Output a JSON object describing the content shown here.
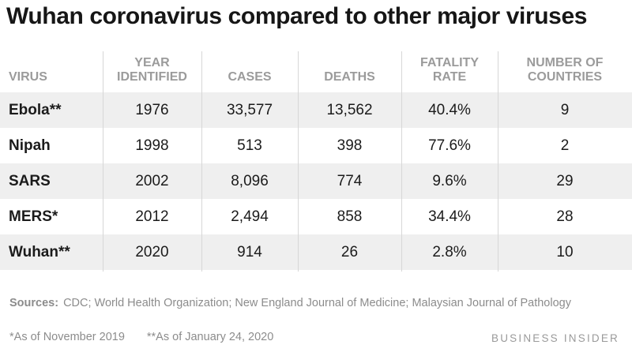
{
  "title": "Wuhan coronavirus compared to other major viruses",
  "chart_data": {
    "type": "table",
    "title": "Wuhan coronavirus compared to other major viruses",
    "columns": [
      "VIRUS",
      "YEAR\nIDENTIFIED",
      "CASES",
      "DEATHS",
      "FATALITY\nRATE",
      "NUMBER OF\nCOUNTRIES"
    ],
    "rows": [
      [
        "Ebola**",
        "1976",
        "33,577",
        "13,562",
        "40.4%",
        "9"
      ],
      [
        "Nipah",
        "1998",
        "513",
        "398",
        "77.6%",
        "2"
      ],
      [
        "SARS",
        "2002",
        "8,096",
        "774",
        "9.6%",
        "29"
      ],
      [
        "MERS*",
        "2012",
        "2,494",
        "858",
        "34.4%",
        "28"
      ],
      [
        "Wuhan**",
        "2020",
        "914",
        "26",
        "2.8%",
        "10"
      ]
    ]
  },
  "footer": {
    "sources_label": "Sources:",
    "sources_text": "CDC; World Health Organization; New England Journal of Medicine; Malaysian Journal of Pathology",
    "note_1": "*As of November 2019",
    "note_2": "**As of January 24, 2020",
    "brand": "BUSINESS INSIDER"
  },
  "colors": {
    "header_text": "#9b9b9b",
    "row_shade": "#efefef",
    "divider": "#d7d7d7"
  }
}
